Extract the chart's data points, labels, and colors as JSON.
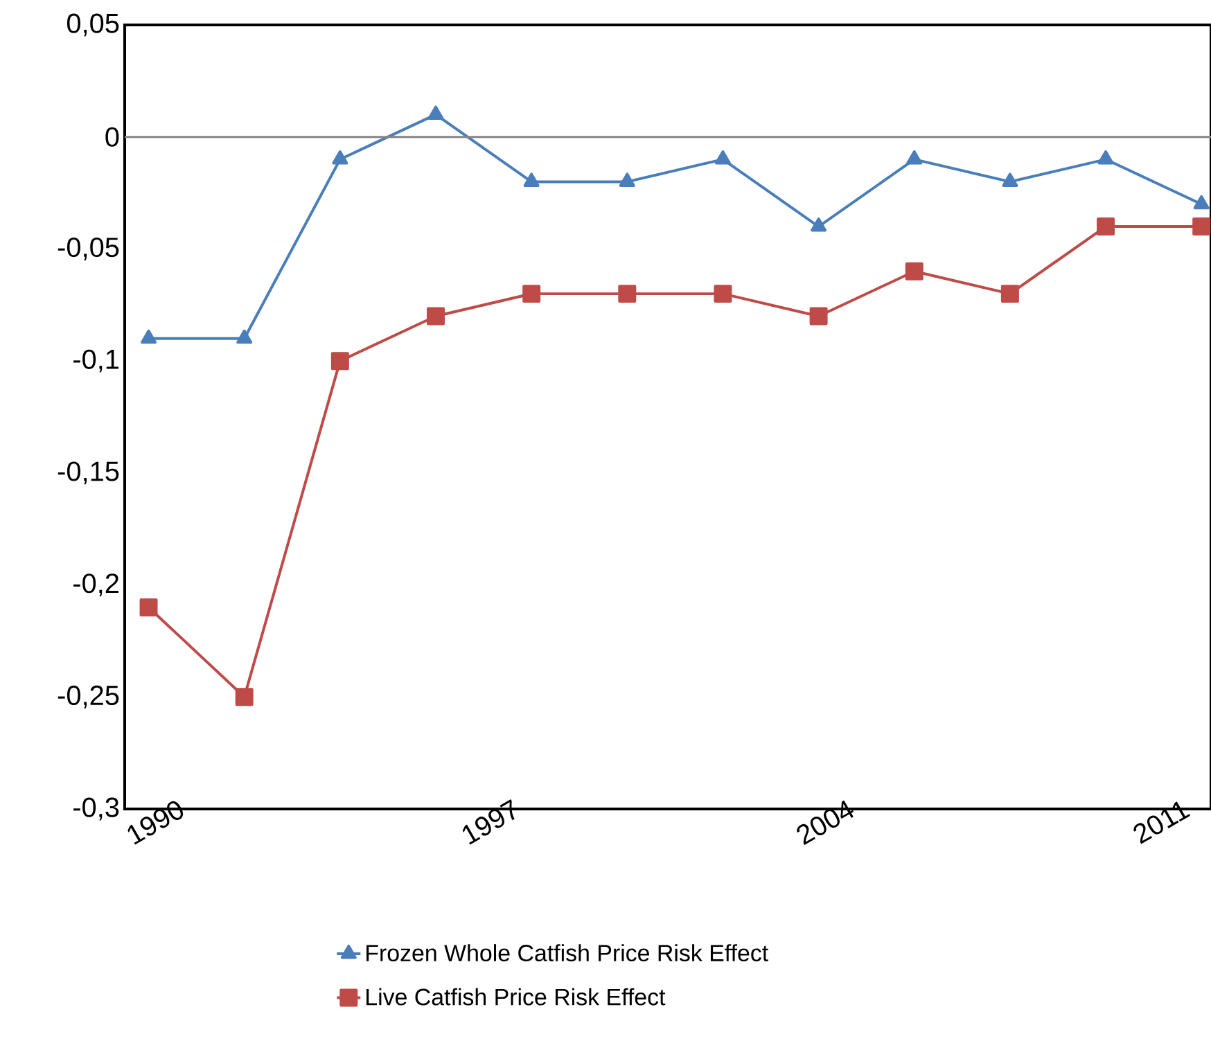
{
  "chart_data": {
    "type": "line",
    "x": [
      1990,
      1992,
      1994,
      1996,
      1998,
      2000,
      2002,
      2004,
      2006,
      2008,
      2010,
      2012
    ],
    "xlim": [
      1989.5,
      2012.2
    ],
    "xticks": [
      1990,
      1997,
      2004,
      2011
    ],
    "ylim": [
      -0.3,
      0.05
    ],
    "yticks": [
      {
        "value": -0.3,
        "label": "-0,3"
      },
      {
        "value": -0.25,
        "label": "-0,25"
      },
      {
        "value": -0.2,
        "label": "-0,2"
      },
      {
        "value": -0.15,
        "label": "-0,15"
      },
      {
        "value": -0.1,
        "label": "-0,1"
      },
      {
        "value": -0.05,
        "label": "-0,05"
      },
      0,
      {
        "value": 0.05,
        "label": "0,05"
      }
    ],
    "ref_lines": [
      {
        "axis": "y",
        "value": 0,
        "color": "#868686"
      }
    ],
    "legend": "bottom",
    "grid": false,
    "series": [
      {
        "name": "Frozen Whole Catfish Price Risk Effect",
        "color": "#4a7ebb",
        "marker": "triangle",
        "values": [
          -0.09,
          -0.09,
          -0.01,
          0.01,
          -0.02,
          -0.02,
          -0.01,
          -0.04,
          -0.01,
          -0.02,
          -0.01,
          -0.03
        ]
      },
      {
        "name": "Live Catfish Price Risk Effect",
        "color": "#be4b48",
        "marker": "square",
        "values": [
          -0.21,
          -0.25,
          -0.1,
          -0.08,
          -0.07,
          -0.07,
          -0.07,
          -0.08,
          -0.06,
          -0.07,
          -0.04,
          -0.04
        ]
      }
    ]
  }
}
